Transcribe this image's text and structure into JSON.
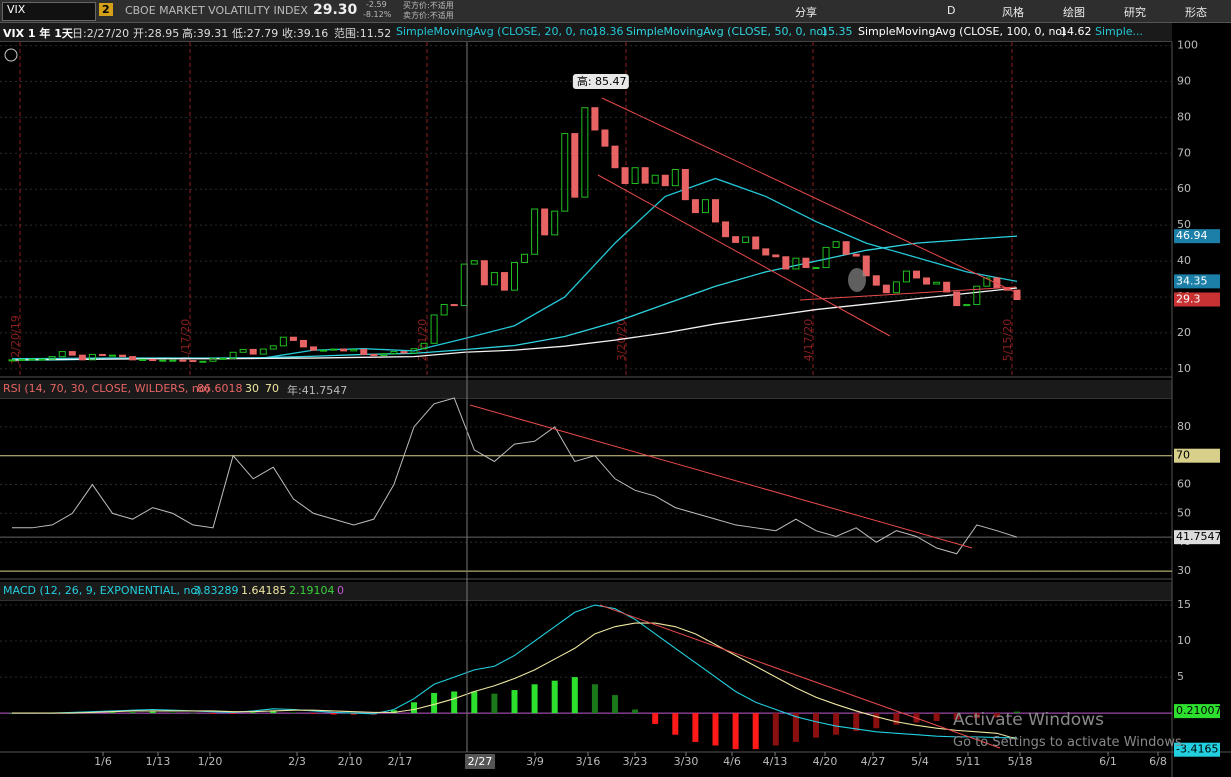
{
  "toolbar": {
    "symbol": "VIX",
    "link": "2",
    "description": "CBOE MARKET VOLATILITY INDEX",
    "last": "29.30",
    "change": "-2.59",
    "change_pct": "-8.12%",
    "bid": "买方价:不适用",
    "ask": "卖方价:不适用",
    "share": "分享",
    "period": "D",
    "style": "风格",
    "drawings": "绘图",
    "studies": "研究",
    "patterns": "形态"
  },
  "info_bar": {
    "symbol": "VIX 1 年 1天",
    "date": "日:2/27/20",
    "open": "开:28.95",
    "high": "高:39.31",
    "low": "低:27.79",
    "close": "收:39.16",
    "range": "范围:11.52",
    "sma20": "SimpleMovingAvg (CLOSE, 20, 0, no)",
    "sma20_value": "18.36",
    "sma50": "SimpleMovingAvg (CLOSE, 50, 0, no)",
    "sma50_value": "15.35",
    "sma100": "SimpleMovingAvg (CLOSE, 100, 0, no)",
    "sma100_value": "14.62",
    "more": "Simple..."
  },
  "chart_data": [
    {
      "type": "candlestick",
      "callout": "高: 85.47",
      "ylim": [
        8,
        101
      ],
      "yticks": [
        10,
        20,
        30,
        40,
        50,
        60,
        70,
        80,
        90,
        100
      ],
      "up_color": "#1fbf1f",
      "down_color": "#e86464",
      "values": [
        12.5,
        12.6,
        12.7,
        12.7,
        13.4,
        14.8,
        13.8,
        12.5,
        14.0,
        13.8,
        13.8,
        13.4,
        12.5,
        12.6,
        12.3,
        12.4,
        12.4,
        12.3,
        12.1,
        12.1,
        12.9,
        12.9,
        14.6,
        15.4,
        14.1,
        15.5,
        16.4,
        18.8,
        17.9,
        16.1,
        15.2,
        15.2,
        15.5,
        15.0,
        15.4,
        14.0,
        13.7,
        14.2,
        14.8,
        14.4,
        15.6,
        17.1,
        25.0,
        27.9,
        27.6,
        39.16,
        40.1,
        33.4,
        36.8,
        31.9,
        39.6,
        41.9,
        54.5,
        47.3,
        53.9,
        75.5,
        57.8,
        82.7,
        76.5,
        72.0,
        66.0,
        61.6,
        66.0,
        61.7,
        63.9,
        61.0,
        65.5,
        57.1,
        53.5,
        57.1,
        50.9,
        46.8,
        45.2,
        46.7,
        43.4,
        41.7,
        41.2,
        37.8,
        40.8,
        38.2,
        38.2,
        43.8,
        45.4,
        41.9,
        41.4,
        35.9,
        33.3,
        31.2,
        34.2,
        37.2,
        35.3,
        33.6,
        34.1,
        31.4,
        27.6,
        27.9,
        33.0,
        35.3,
        32.6,
        31.9,
        29.3
      ],
      "series": [
        {
          "name": "SMA20",
          "color": "#22c8d8",
          "values": [
            12.4,
            12.5,
            12.8,
            13.0,
            12.9,
            13.0,
            15.2,
            15.6,
            15.0,
            18.4,
            22,
            30,
            45,
            58,
            63,
            58,
            51,
            45,
            41,
            37,
            34.35
          ]
        },
        {
          "name": "SMA50",
          "color": "#2fd3e0",
          "values": [
            12.8,
            12.9,
            13.0,
            13.0,
            13.0,
            13.1,
            13.5,
            14.0,
            14.3,
            15.35,
            16.5,
            19,
            23,
            28,
            33,
            37,
            40,
            43,
            45,
            46,
            46.94
          ]
        },
        {
          "name": "SMA100",
          "color": "#f2f2f2",
          "values": [
            12.5,
            12.6,
            12.7,
            12.8,
            12.8,
            12.9,
            13.0,
            13.2,
            13.4,
            14.62,
            15.2,
            16.3,
            18,
            20,
            22.5,
            24.5,
            26.5,
            28,
            29.5,
            31,
            32.5
          ]
        }
      ],
      "price_label": 29.3,
      "markers": [
        "12/20/19",
        "1/17/20",
        "2/21/20",
        "3/20/20",
        "4/17/20",
        "5/15/20"
      ]
    },
    {
      "type": "line",
      "title": "RSI (14, 70, 30, CLOSE, WILDERS, no)",
      "current": "86.6018",
      "oversold": 30,
      "overbought": 70,
      "year_value": "年:41.7547",
      "ylim": [
        27.6,
        90
      ],
      "yticks": [
        30,
        40,
        50,
        60,
        80
      ],
      "color": "#bdbdbd",
      "values": [
        45,
        45,
        46,
        50,
        60,
        50,
        48,
        52,
        50,
        46,
        45,
        70,
        62,
        66,
        55,
        50,
        48,
        46,
        48,
        60,
        80,
        88,
        90,
        72,
        68,
        74,
        75,
        80,
        68,
        70,
        62,
        58,
        56,
        52,
        50,
        48,
        46,
        45,
        44,
        48,
        44,
        42,
        45,
        40,
        44,
        42,
        38,
        36,
        46,
        44,
        41.7547
      ]
    },
    {
      "type": "macd",
      "title": "MACD (12, 26, 9, EXPONENTIAL, no)",
      "value": "3.83289",
      "avg": "1.64185",
      "diff": "2.19104",
      "zero": "0",
      "ylim": [
        -5.4,
        15.7
      ],
      "yticks": [
        5,
        10,
        15
      ],
      "series": [
        {
          "name": "Value",
          "color": "#22d0e0",
          "values": [
            0,
            0,
            0,
            0.1,
            0.2,
            0.3,
            0.4,
            0.5,
            0.4,
            0.3,
            0.2,
            0.1,
            0.3,
            0.6,
            0.5,
            0.3,
            0.1,
            0,
            -0.1,
            0.5,
            2,
            4,
            5,
            6,
            6.5,
            8,
            10,
            12,
            14,
            15,
            14.5,
            13,
            11,
            9,
            7,
            5,
            3,
            1.5,
            0.5,
            -0.5,
            -1.2,
            -1.8,
            -2.2,
            -2.6,
            -2.8,
            -3.0,
            -3.2,
            -3.3,
            -3.3,
            -3.4,
            -3.4165
          ]
        },
        {
          "name": "Avg",
          "color": "#efe6a0",
          "values": [
            0,
            0,
            0,
            0,
            0.1,
            0.2,
            0.3,
            0.3,
            0.3,
            0.3,
            0.3,
            0.2,
            0.2,
            0.3,
            0.4,
            0.4,
            0.3,
            0.2,
            0.1,
            0.1,
            0.5,
            1.2,
            2,
            3,
            3.8,
            4.8,
            6,
            7.5,
            9,
            11,
            12,
            12.5,
            12.5,
            12,
            11,
            9.5,
            8,
            6.5,
            5,
            3.5,
            2.2,
            1.2,
            0.3,
            -0.5,
            -1.2,
            -1.7,
            -2.1,
            -2.4,
            -2.6,
            -2.8,
            -3.6
          ]
        }
      ],
      "diff_values": [
        0,
        0,
        0,
        0.1,
        0.1,
        0.1,
        0.1,
        0.2,
        0.1,
        0,
        -0.1,
        -0.1,
        0.1,
        0.3,
        0.1,
        -0.1,
        -0.2,
        -0.2,
        -0.2,
        0.4,
        1.5,
        2.8,
        3,
        3,
        2.7,
        3.2,
        4,
        4.5,
        5,
        4,
        2.5,
        0.5,
        -1.5,
        -3,
        -4,
        -4.5,
        -5,
        -5,
        -4.5,
        -4,
        -3.4,
        -3,
        -2.5,
        -2.1,
        -1.6,
        -1.3,
        -1.1,
        -0.9,
        -0.7,
        -0.6,
        0.21007
      ]
    }
  ],
  "x_axis": {
    "labels": [
      "1/6",
      "1/13",
      "1/20",
      "2/3",
      "2/10",
      "2/17",
      "3/9",
      "3/16",
      "3/23",
      "3/30",
      "4/6",
      "4/13",
      "4/20",
      "4/27",
      "5/4",
      "5/11",
      "5/18",
      "6/1",
      "6/8"
    ],
    "cursor": "2/27"
  },
  "watermark": {
    "title": "Activate Windows",
    "subtitle": "Go to Settings to activate Windows."
  }
}
